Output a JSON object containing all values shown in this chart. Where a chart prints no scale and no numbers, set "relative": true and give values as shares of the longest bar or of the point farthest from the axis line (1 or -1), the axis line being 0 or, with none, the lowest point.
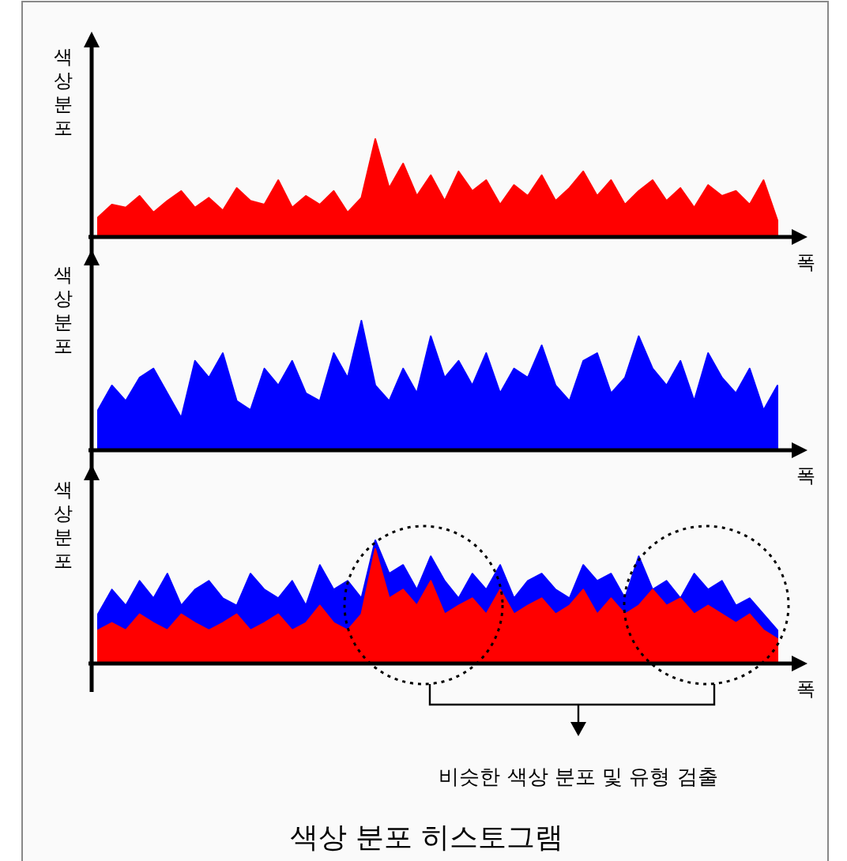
{
  "chart_data": [
    {
      "type": "area",
      "relative": true,
      "ylabel": "색상분포",
      "xlabel": "폭",
      "categories": [
        null,
        null,
        null,
        null,
        null,
        null,
        null,
        null,
        null,
        null,
        null,
        null,
        null,
        null,
        null,
        null,
        null,
        null,
        null,
        null,
        null,
        null,
        null,
        null,
        null,
        null,
        null,
        null,
        null,
        null,
        null,
        null,
        null,
        null,
        null,
        null,
        null,
        null,
        null,
        null,
        null,
        null,
        null,
        null,
        null,
        null,
        null,
        null,
        null,
        null
      ],
      "series": [
        {
          "color": "#ff0000",
          "values": [
            0.2,
            0.33,
            0.3,
            0.42,
            0.25,
            0.37,
            0.47,
            0.3,
            0.4,
            0.27,
            0.5,
            0.37,
            0.33,
            0.58,
            0.3,
            0.42,
            0.33,
            0.47,
            0.25,
            0.4,
            1,
            0.5,
            0.75,
            0.42,
            0.63,
            0.37,
            0.67,
            0.47,
            0.58,
            0.33,
            0.53,
            0.42,
            0.63,
            0.37,
            0.5,
            0.67,
            0.42,
            0.58,
            0.33,
            0.47,
            0.58,
            0.37,
            0.5,
            0.3,
            0.53,
            0.42,
            0.47,
            0.33,
            0.58,
            0.17
          ]
        }
      ]
    },
    {
      "type": "area",
      "relative": true,
      "ylabel": "색상분포",
      "xlabel": "폭",
      "categories": [
        null,
        null,
        null,
        null,
        null,
        null,
        null,
        null,
        null,
        null,
        null,
        null,
        null,
        null,
        null,
        null,
        null,
        null,
        null,
        null,
        null,
        null,
        null,
        null,
        null,
        null,
        null,
        null,
        null,
        null,
        null,
        null,
        null,
        null,
        null,
        null,
        null,
        null,
        null,
        null,
        null,
        null,
        null,
        null,
        null,
        null,
        null,
        null,
        null,
        null
      ],
      "series": [
        {
          "color": "#0000ff",
          "values": [
            0.31,
            0.5,
            0.38,
            0.56,
            0.63,
            0.44,
            0.25,
            0.69,
            0.56,
            0.75,
            0.38,
            0.31,
            0.63,
            0.5,
            0.69,
            0.44,
            0.38,
            0.75,
            0.56,
            1,
            0.5,
            0.38,
            0.63,
            0.44,
            0.88,
            0.56,
            0.69,
            0.5,
            0.75,
            0.44,
            0.63,
            0.56,
            0.81,
            0.5,
            0.38,
            0.69,
            0.75,
            0.44,
            0.56,
            0.88,
            0.63,
            0.5,
            0.69,
            0.38,
            0.75,
            0.56,
            0.44,
            0.63,
            0.31,
            0.5
          ]
        }
      ]
    },
    {
      "type": "area",
      "relative": true,
      "ylabel": "색상분포",
      "xlabel": "폭",
      "annotations": [
        "비슷한 색상 분포 및 유형 검출",
        "색상 분포 히스토그램"
      ],
      "categories": [
        null,
        null,
        null,
        null,
        null,
        null,
        null,
        null,
        null,
        null,
        null,
        null,
        null,
        null,
        null,
        null,
        null,
        null,
        null,
        null,
        null,
        null,
        null,
        null,
        null,
        null,
        null,
        null,
        null,
        null,
        null,
        null,
        null,
        null,
        null,
        null,
        null,
        null,
        null,
        null,
        null,
        null,
        null,
        null,
        null,
        null,
        null,
        null,
        null,
        null
      ],
      "series": [
        {
          "color": "#0000ff",
          "values": [
            0.4,
            0.6,
            0.47,
            0.67,
            0.53,
            0.73,
            0.47,
            0.6,
            0.67,
            0.53,
            0.47,
            0.73,
            0.6,
            0.53,
            0.67,
            0.47,
            0.8,
            0.6,
            0.67,
            0.53,
            1,
            0.73,
            0.8,
            0.6,
            0.87,
            0.67,
            0.53,
            0.73,
            0.6,
            0.8,
            0.53,
            0.67,
            0.73,
            0.6,
            0.53,
            0.8,
            0.67,
            0.73,
            0.53,
            0.87,
            0.6,
            0.67,
            0.53,
            0.73,
            0.6,
            0.67,
            0.47,
            0.53,
            0.4,
            0.27
          ]
        },
        {
          "color": "#ff0000",
          "values": [
            0.27,
            0.33,
            0.27,
            0.4,
            0.33,
            0.27,
            0.4,
            0.33,
            0.27,
            0.33,
            0.4,
            0.27,
            0.33,
            0.4,
            0.27,
            0.33,
            0.47,
            0.33,
            0.27,
            0.4,
            0.93,
            0.53,
            0.6,
            0.47,
            0.67,
            0.4,
            0.47,
            0.53,
            0.4,
            0.6,
            0.4,
            0.47,
            0.53,
            0.4,
            0.47,
            0.6,
            0.4,
            0.53,
            0.4,
            0.47,
            0.6,
            0.47,
            0.53,
            0.4,
            0.47,
            0.4,
            0.33,
            0.4,
            0.27,
            0.2
          ]
        }
      ]
    }
  ]
}
